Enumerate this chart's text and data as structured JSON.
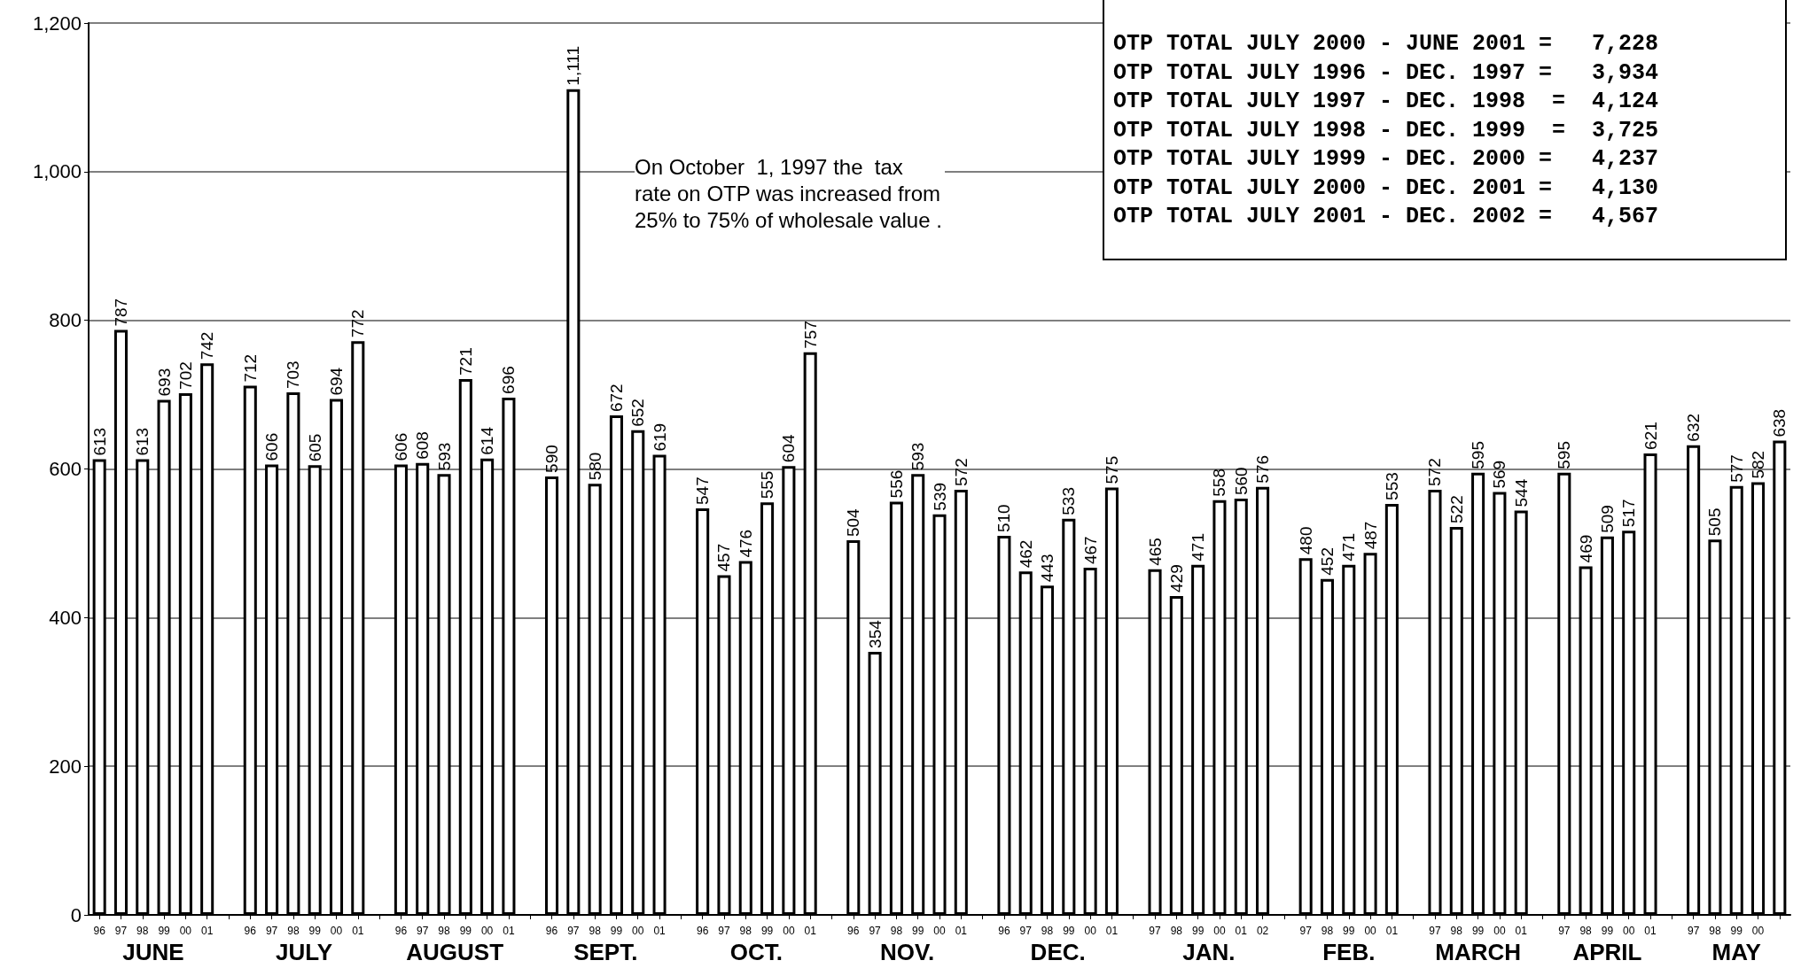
{
  "chart_data": {
    "type": "bar",
    "categories": [
      "96",
      "97",
      "98",
      "99",
      "00",
      "01",
      null,
      "96",
      "97",
      "98",
      "99",
      "00",
      "01",
      null,
      "96",
      "97",
      "98",
      "99",
      "00",
      "01",
      null,
      "96",
      "97",
      "98",
      "99",
      "00",
      "01",
      null,
      "96",
      "97",
      "98",
      "99",
      "00",
      "01",
      null,
      "96",
      "97",
      "98",
      "99",
      "00",
      "01",
      null,
      "96",
      "97",
      "98",
      "99",
      "00",
      "01",
      null,
      "97",
      "98",
      "99",
      "00",
      "01",
      "02",
      null,
      "97",
      "98",
      "99",
      "00",
      "01",
      null,
      "97",
      "98",
      "99",
      "00",
      "01",
      null,
      "97",
      "98",
      "99",
      "00",
      "01",
      null,
      "97",
      "98",
      "99",
      "00",
      null
    ],
    "series": [
      {
        "name": "JUNE",
        "color": "#ffffff",
        "values": [
          613,
          787,
          613,
          693,
          702,
          742,
          null,
          null,
          null,
          null,
          null,
          null,
          null,
          null,
          null,
          null,
          null,
          null,
          null,
          null,
          null,
          null,
          null,
          null,
          null,
          null,
          null,
          null,
          null,
          null,
          null,
          null,
          null,
          null,
          null,
          null,
          null,
          null,
          null,
          null,
          null,
          null,
          null,
          null,
          null,
          null,
          null,
          null,
          null,
          null,
          null,
          null,
          null,
          null,
          null,
          null,
          null,
          null,
          null,
          null,
          null,
          null,
          null,
          null,
          null,
          null,
          null,
          null,
          null,
          null,
          null,
          null,
          null,
          null,
          null,
          null,
          null,
          null,
          null
        ]
      },
      {
        "name": "JULY",
        "color": "#ffffff",
        "values": [
          null,
          null,
          null,
          null,
          null,
          null,
          null,
          712,
          606,
          703,
          605,
          694,
          772,
          null,
          null,
          null,
          null,
          null,
          null,
          null,
          null,
          null,
          null,
          null,
          null,
          null,
          null,
          null,
          null,
          null,
          null,
          null,
          null,
          null,
          null,
          null,
          null,
          null,
          null,
          null,
          null,
          null,
          null,
          null,
          null,
          null,
          null,
          null,
          null,
          null,
          null,
          null,
          null,
          null,
          null,
          null,
          null,
          null,
          null,
          null,
          null,
          null,
          null,
          null,
          null,
          null,
          null,
          null,
          null,
          null,
          null,
          null,
          null,
          null,
          null,
          null,
          null,
          null,
          null
        ]
      },
      {
        "name": "AUGUST",
        "color": "#ffffff",
        "values": [
          null,
          null,
          null,
          null,
          null,
          null,
          null,
          null,
          null,
          null,
          null,
          null,
          null,
          null,
          606,
          608,
          593,
          721,
          614,
          696,
          null,
          null,
          null,
          null,
          null,
          null,
          null,
          null,
          null,
          null,
          null,
          null,
          null,
          null,
          null,
          null,
          null,
          null,
          null,
          null,
          null,
          null,
          null,
          null,
          null,
          null,
          null,
          null,
          null,
          null,
          null,
          null,
          null,
          null,
          null,
          null,
          null,
          null,
          null,
          null,
          null,
          null,
          null,
          null,
          null,
          null,
          null,
          null,
          null,
          null,
          null,
          null,
          null,
          null,
          null,
          null,
          null,
          null,
          null
        ]
      },
      {
        "name": "SEPT.",
        "color": "#ffffff",
        "values": [
          null,
          null,
          null,
          null,
          null,
          null,
          null,
          null,
          null,
          null,
          null,
          null,
          null,
          null,
          null,
          null,
          null,
          null,
          null,
          null,
          null,
          590,
          1111,
          580,
          672,
          652,
          619,
          null,
          null,
          null,
          null,
          null,
          null,
          null,
          null,
          null,
          null,
          null,
          null,
          null,
          null,
          null,
          null,
          null,
          null,
          null,
          null,
          null,
          null,
          null,
          null,
          null,
          null,
          null,
          null,
          null,
          null,
          null,
          null,
          null,
          null,
          null,
          null,
          null,
          null,
          null,
          null,
          null,
          null,
          null,
          null,
          null,
          null,
          null,
          null,
          null,
          null,
          null,
          null
        ],
        "value_labels": [
          null,
          null,
          null,
          null,
          null,
          null,
          null,
          null,
          null,
          null,
          null,
          null,
          null,
          null,
          null,
          null,
          null,
          null,
          null,
          null,
          null,
          "590",
          "1,111",
          "580",
          "672",
          "652",
          "619",
          null,
          null,
          null,
          null,
          null,
          null,
          null,
          null,
          null,
          null,
          null,
          null,
          null,
          null,
          null,
          null,
          null,
          null,
          null,
          null,
          null,
          null,
          null,
          null,
          null,
          null,
          null,
          null,
          null,
          null,
          null,
          null,
          null,
          null,
          null,
          null,
          null,
          null,
          null,
          null,
          null,
          null,
          null,
          null,
          null,
          null,
          null,
          null,
          null,
          null,
          null,
          null
        ]
      },
      {
        "name": "OCT.",
        "color": "#ffffff",
        "values": [
          null,
          null,
          null,
          null,
          null,
          null,
          null,
          null,
          null,
          null,
          null,
          null,
          null,
          null,
          null,
          null,
          null,
          null,
          null,
          null,
          null,
          null,
          null,
          null,
          null,
          null,
          null,
          null,
          547,
          457,
          476,
          555,
          604,
          757,
          null,
          null,
          null,
          null,
          null,
          null,
          null,
          null,
          null,
          null,
          null,
          null,
          null,
          null,
          null,
          null,
          null,
          null,
          null,
          null,
          null,
          null,
          null,
          null,
          null,
          null,
          null,
          null,
          null,
          null,
          null,
          null,
          null,
          null,
          null,
          null,
          null,
          null,
          null,
          null,
          null,
          null,
          null,
          null,
          null
        ]
      },
      {
        "name": "NOV.",
        "color": "#ffffff",
        "values": [
          null,
          null,
          null,
          null,
          null,
          null,
          null,
          null,
          null,
          null,
          null,
          null,
          null,
          null,
          null,
          null,
          null,
          null,
          null,
          null,
          null,
          null,
          null,
          null,
          null,
          null,
          null,
          null,
          null,
          null,
          null,
          null,
          null,
          null,
          null,
          504,
          354,
          556,
          593,
          539,
          572,
          null,
          null,
          null,
          null,
          null,
          null,
          null,
          null,
          null,
          null,
          null,
          null,
          null,
          null,
          null,
          null,
          null,
          null,
          null,
          null,
          null,
          null,
          null,
          null,
          null,
          null,
          null,
          null,
          null,
          null,
          null,
          null,
          null,
          null,
          null,
          null,
          null,
          null
        ]
      },
      {
        "name": "DEC.",
        "color": "#ffffff",
        "values": [
          null,
          null,
          null,
          null,
          null,
          null,
          null,
          null,
          null,
          null,
          null,
          null,
          null,
          null,
          null,
          null,
          null,
          null,
          null,
          null,
          null,
          null,
          null,
          null,
          null,
          null,
          null,
          null,
          null,
          null,
          null,
          null,
          null,
          null,
          null,
          null,
          null,
          null,
          null,
          null,
          null,
          null,
          510,
          462,
          443,
          533,
          467,
          575,
          null,
          null,
          null,
          null,
          null,
          null,
          null,
          null,
          null,
          null,
          null,
          null,
          null,
          null,
          null,
          null,
          null,
          null,
          null,
          null,
          null,
          null,
          null,
          null,
          null,
          null,
          null,
          null,
          null,
          null,
          null
        ]
      },
      {
        "name": "JAN.",
        "color": "#ffffff",
        "values": [
          null,
          null,
          null,
          null,
          null,
          null,
          null,
          null,
          null,
          null,
          null,
          null,
          null,
          null,
          null,
          null,
          null,
          null,
          null,
          null,
          null,
          null,
          null,
          null,
          null,
          null,
          null,
          null,
          null,
          null,
          null,
          null,
          null,
          null,
          null,
          null,
          null,
          null,
          null,
          null,
          null,
          null,
          null,
          null,
          null,
          null,
          null,
          null,
          null,
          465,
          429,
          471,
          558,
          560,
          576,
          null,
          null,
          null,
          null,
          null,
          null,
          null,
          null,
          null,
          null,
          null,
          null,
          null,
          null,
          null,
          null,
          null,
          null,
          null,
          null,
          null,
          null,
          null,
          null
        ]
      },
      {
        "name": "FEB.",
        "color": "#ffffff",
        "values": [
          null,
          null,
          null,
          null,
          null,
          null,
          null,
          null,
          null,
          null,
          null,
          null,
          null,
          null,
          null,
          null,
          null,
          null,
          null,
          null,
          null,
          null,
          null,
          null,
          null,
          null,
          null,
          null,
          null,
          null,
          null,
          null,
          null,
          null,
          null,
          null,
          null,
          null,
          null,
          null,
          null,
          null,
          null,
          null,
          null,
          null,
          null,
          null,
          null,
          null,
          null,
          null,
          null,
          null,
          null,
          null,
          480,
          452,
          471,
          487,
          553,
          null,
          null,
          null,
          null,
          null,
          null,
          null,
          null,
          null,
          null,
          null,
          null,
          null,
          null,
          null,
          null,
          null,
          null
        ]
      },
      {
        "name": "MARCH",
        "color": "#ffffff",
        "values": [
          null,
          null,
          null,
          null,
          null,
          null,
          null,
          null,
          null,
          null,
          null,
          null,
          null,
          null,
          null,
          null,
          null,
          null,
          null,
          null,
          null,
          null,
          null,
          null,
          null,
          null,
          null,
          null,
          null,
          null,
          null,
          null,
          null,
          null,
          null,
          null,
          null,
          null,
          null,
          null,
          null,
          null,
          null,
          null,
          null,
          null,
          null,
          null,
          null,
          null,
          null,
          null,
          null,
          null,
          null,
          null,
          null,
          null,
          null,
          null,
          null,
          null,
          572,
          522,
          595,
          569,
          544,
          null,
          null,
          null,
          null,
          null,
          null,
          null,
          null,
          null,
          null,
          null,
          null
        ]
      },
      {
        "name": "APRIL",
        "color": "#ffffff",
        "values": [
          null,
          null,
          null,
          null,
          null,
          null,
          null,
          null,
          null,
          null,
          null,
          null,
          null,
          null,
          null,
          null,
          null,
          null,
          null,
          null,
          null,
          null,
          null,
          null,
          null,
          null,
          null,
          null,
          null,
          null,
          null,
          null,
          null,
          null,
          null,
          null,
          null,
          null,
          null,
          null,
          null,
          null,
          null,
          null,
          null,
          null,
          null,
          null,
          null,
          null,
          null,
          null,
          null,
          null,
          null,
          null,
          null,
          null,
          null,
          null,
          null,
          null,
          null,
          null,
          null,
          null,
          null,
          null,
          595,
          469,
          509,
          517,
          621,
          null,
          null,
          null,
          null,
          null,
          null
        ]
      },
      {
        "name": "MAY",
        "color": "#ffffff",
        "values": [
          null,
          null,
          null,
          null,
          null,
          null,
          null,
          null,
          null,
          null,
          null,
          null,
          null,
          null,
          null,
          null,
          null,
          null,
          null,
          null,
          null,
          null,
          null,
          null,
          null,
          null,
          null,
          null,
          null,
          null,
          null,
          null,
          null,
          null,
          null,
          null,
          null,
          null,
          null,
          null,
          null,
          null,
          null,
          null,
          null,
          null,
          null,
          null,
          null,
          null,
          null,
          null,
          null,
          null,
          null,
          null,
          null,
          null,
          null,
          null,
          null,
          null,
          null,
          null,
          null,
          null,
          null,
          null,
          null,
          null,
          null,
          null,
          null,
          null,
          632,
          505,
          577,
          582,
          638
        ]
      }
    ],
    "data_labels": true,
    "ylim": [
      0,
      1200
    ],
    "yticks": [
      0,
      200,
      400,
      600,
      800,
      {
        "value": 1000,
        "label": "1,000"
      },
      {
        "value": 1200,
        "label": "1,200"
      }
    ],
    "grid": "y",
    "annotations": [
      "On October  1, 1997 the  tax rate on OTP was increased from 25% to 75% of wholesale value .",
      "OTP TOTAL JULY 2000 - JUNE 2001 =   7,228",
      "OTP TOTAL JULY 1996 - DEC. 1997 =   3,934",
      "OTP TOTAL JULY 1997 - DEC. 1998  =  4,124",
      "OTP TOTAL JULY 1998 - DEC. 1999  =  3,725",
      "OTP TOTAL JULY 1999 - DEC. 2000 =   4,237",
      "OTP TOTAL JULY 2000 - DEC. 2001 =   4,130",
      "OTP TOTAL JULY 2001 - DEC. 2002 =   4,567"
    ]
  }
}
